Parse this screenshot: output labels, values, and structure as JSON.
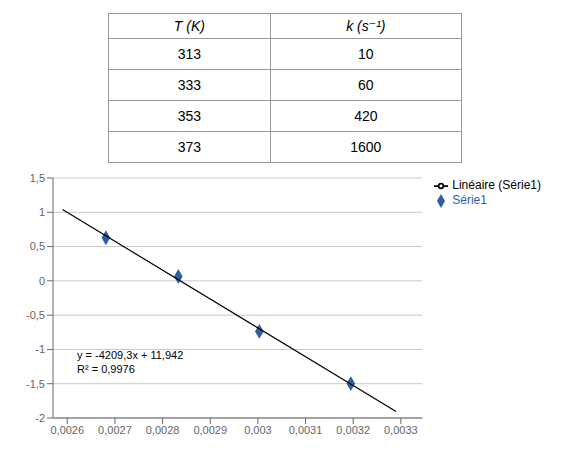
{
  "chart_data": [
    {
      "type": "table",
      "columns": [
        "T (K)",
        "k (s⁻¹)"
      ],
      "rows": [
        [
          313,
          10
        ],
        [
          333,
          60
        ],
        [
          353,
          420
        ],
        [
          373,
          1600
        ]
      ]
    },
    {
      "type": "scatter",
      "series": [
        {
          "name": "Série1",
          "type": "scatter",
          "color": "#2e5fa3",
          "marker": "diamond",
          "x": [
            0.003195,
            0.003003,
            0.002833,
            0.002681
          ],
          "values": [
            -1.498,
            -0.737,
            0.063,
            0.629
          ]
        },
        {
          "name": "Linéaire (Série1)",
          "type": "line",
          "color": "#000000",
          "x": [
            0.00259,
            0.00329
          ],
          "values": [
            1.039913,
            -1.906597
          ]
        }
      ],
      "xlim": [
        0.00257,
        0.003345
      ],
      "xticks": [
        {
          "value": 0.0026,
          "label": "0,0026"
        },
        {
          "value": 0.0027,
          "label": "0,0027"
        },
        {
          "value": 0.0028,
          "label": "0,0028"
        },
        {
          "value": 0.0029,
          "label": "0,0029"
        },
        {
          "value": 0.003,
          "label": "0,003"
        },
        {
          "value": 0.0031,
          "label": "0,0031"
        },
        {
          "value": 0.0032,
          "label": "0,0032"
        },
        {
          "value": 0.0033,
          "label": "0,0033"
        }
      ],
      "ylim": [
        -2.0,
        1.5
      ],
      "yticks": [
        -2,
        {
          "value": -1.5,
          "label": "-1,5"
        },
        -1,
        {
          "value": -0.5,
          "label": "-0,5"
        },
        0,
        {
          "value": 0.5,
          "label": "0,5"
        },
        1,
        {
          "value": 1.5,
          "label": "1,5"
        }
      ],
      "grid": "y",
      "legend": "right",
      "annotations": [
        {
          "text": "y = -4209,3x + 11,942",
          "x": 0.00261,
          "y": -1.08
        },
        {
          "text": "R² = 0,9976",
          "x": 0.00261,
          "y": -1.28
        }
      ]
    }
  ]
}
